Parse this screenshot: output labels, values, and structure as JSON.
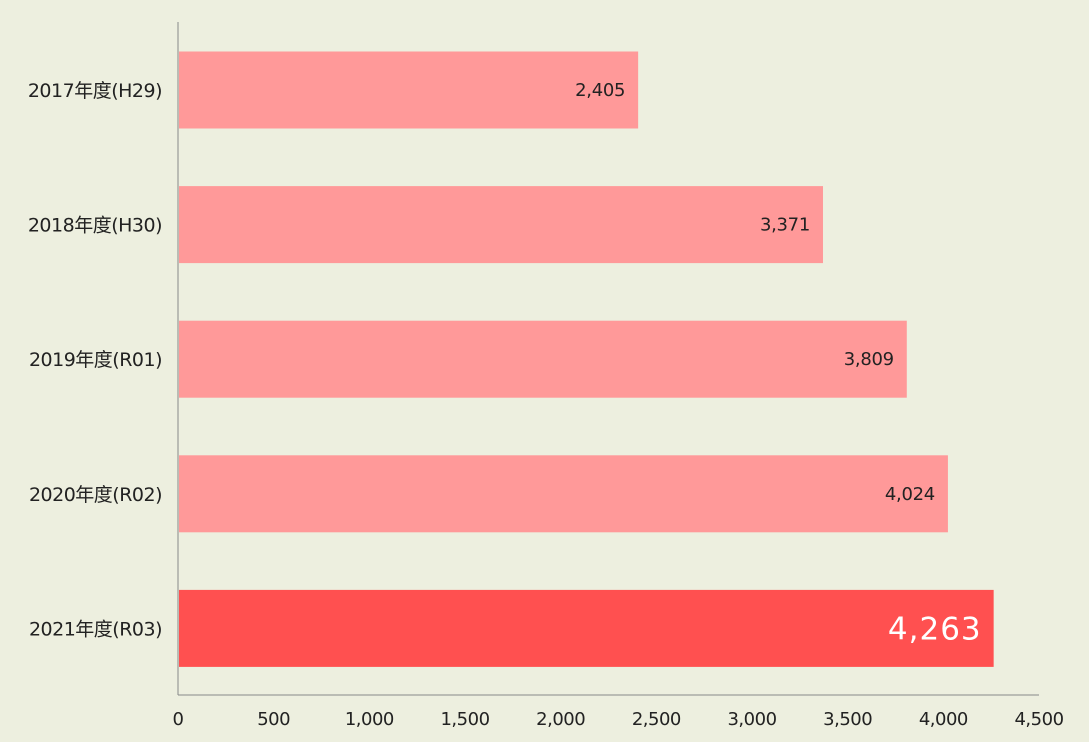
{
  "chart_data": {
    "type": "bar",
    "orientation": "horizontal",
    "categories": [
      "2017年度(H29)",
      "2018年度(H30)",
      "2019年度(R01)",
      "2020年度(R02)",
      "2021年度(R03)"
    ],
    "values": [
      2405,
      3371,
      3809,
      4024,
      4263
    ],
    "value_labels": [
      "2,405",
      "3,371",
      "3,809",
      "4,024",
      "4,263"
    ],
    "highlight_index": 4,
    "xlim": [
      0,
      4500
    ],
    "ticks": [
      0,
      500,
      1000,
      1500,
      2000,
      2500,
      3000,
      3500,
      4000,
      4500
    ],
    "tick_labels": [
      "0",
      "500",
      "1,000",
      "1,500",
      "2,000",
      "2,500",
      "3,000",
      "3,500",
      "4,000",
      "4,500"
    ],
    "title": "",
    "xlabel": "",
    "ylabel": "",
    "grid": false,
    "legend": "none"
  },
  "colors": {
    "bar": "#ff9999",
    "bar_highlight": "#ff5050",
    "background": "#edefdf",
    "axis": "#888888"
  }
}
